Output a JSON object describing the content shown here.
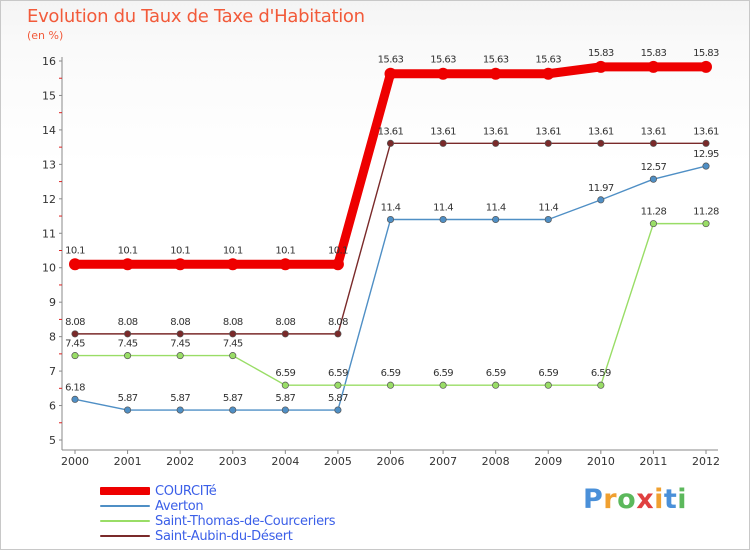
{
  "title": "Evolution du Taux de Taxe d'Habitation",
  "subtitle": "(en %)",
  "logo": {
    "text": "Proxiti",
    "letters": [
      {
        "ch": "P",
        "color": "#4a90d9"
      },
      {
        "ch": "r",
        "color": "#f0a030"
      },
      {
        "ch": "o",
        "color": "#5cb85c"
      },
      {
        "ch": "x",
        "color": "#e04040"
      },
      {
        "ch": "i",
        "color": "#f0a030"
      },
      {
        "ch": "t",
        "color": "#4a90d9"
      },
      {
        "ch": "i",
        "color": "#5cb85c"
      }
    ]
  },
  "chart_data": {
    "type": "line",
    "title": "Evolution du Taux de Taxe d'Habitation",
    "ylabel": "(en %)",
    "xlabel": "",
    "ylim": [
      5,
      16
    ],
    "yticks": [
      5,
      6,
      7,
      8,
      9,
      10,
      11,
      12,
      13,
      14,
      15,
      16
    ],
    "categories": [
      "2000",
      "2001",
      "2002",
      "2003",
      "2004",
      "2005",
      "2006",
      "2007",
      "2008",
      "2009",
      "2010",
      "2011",
      "2012"
    ],
    "legend_position": "bottom-left",
    "series": [
      {
        "name": "COURCITé",
        "color": "#ee0000",
        "width": "thick",
        "values": [
          10.1,
          10.1,
          10.1,
          10.1,
          10.1,
          10.1,
          15.63,
          15.63,
          15.63,
          15.63,
          15.83,
          15.83,
          15.83
        ],
        "labels": [
          "10.1",
          "10.1",
          "10.1",
          "10.1",
          "10.1",
          "10.1",
          "15.63",
          "15.63",
          "15.63",
          "15.63",
          "15.83",
          "15.83",
          "15.83"
        ]
      },
      {
        "name": "Averton",
        "color": "#4f8fc5",
        "width": "thin",
        "values": [
          6.18,
          5.87,
          5.87,
          5.87,
          5.87,
          5.87,
          11.4,
          11.4,
          11.4,
          11.4,
          11.97,
          12.57,
          12.95
        ],
        "labels": [
          "6.18",
          "5.87",
          "5.87",
          "5.87",
          "5.87",
          "5.87",
          "11.4",
          "11.4",
          "11.4",
          "11.4",
          "11.97",
          "12.57",
          "12.95"
        ]
      },
      {
        "name": "Saint-Thomas-de-Courceriers",
        "color": "#99dd66",
        "width": "thin",
        "values": [
          7.45,
          7.45,
          7.45,
          7.45,
          6.59,
          6.59,
          6.59,
          6.59,
          6.59,
          6.59,
          6.59,
          11.28,
          11.28
        ],
        "labels": [
          "7.45",
          "7.45",
          "7.45",
          "7.45",
          "6.59",
          "6.59",
          "6.59",
          "6.59",
          "6.59",
          "6.59",
          "6.59",
          "11.28",
          "11.28"
        ]
      },
      {
        "name": "Saint-Aubin-du-Désert",
        "color": "#7a2a2a",
        "width": "thin",
        "values": [
          8.08,
          8.08,
          8.08,
          8.08,
          8.08,
          8.08,
          13.61,
          13.61,
          13.61,
          13.61,
          13.61,
          13.61,
          13.61
        ],
        "labels": [
          "8.08",
          "8.08",
          "8.08",
          "8.08",
          "8.08",
          "8.08",
          "13.61",
          "13.61",
          "13.61",
          "13.61",
          "13.61",
          "13.61",
          "13.61"
        ]
      }
    ]
  }
}
